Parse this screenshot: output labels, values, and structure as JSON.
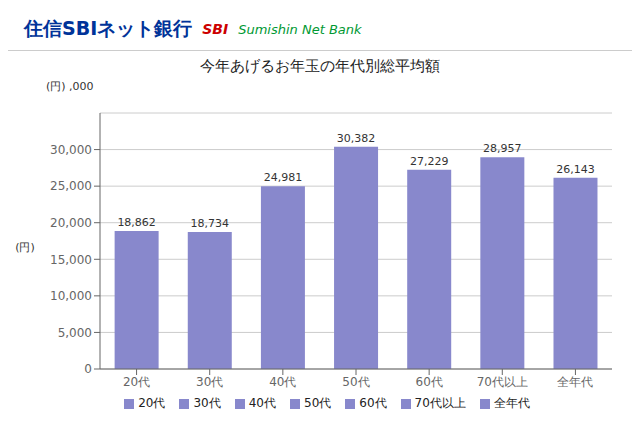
{
  "chart_data": {
    "type": "bar",
    "title": "今年あげるお年玉の年代別総平均額",
    "categories": [
      "20代",
      "30代",
      "40代",
      "50代",
      "60代",
      "70代以上",
      "全年代"
    ],
    "values": [
      18862,
      18734,
      24981,
      30382,
      27229,
      28957,
      26143
    ],
    "value_labels": [
      "18,862",
      "18,734",
      "24,981",
      "30,382",
      "27,229",
      "28,957",
      "26,143"
    ],
    "color": "#8888cc",
    "ylim": [
      0,
      35000
    ],
    "yticks": [
      0,
      {
        "value": 5000,
        "label": "5,000"
      },
      {
        "value": 10000,
        "label": "10,000"
      },
      {
        "value": 15000,
        "label": "15,000"
      },
      {
        "value": 20000,
        "label": "20,000"
      },
      {
        "value": 25000,
        "label": "25,000"
      },
      {
        "value": 30000,
        "label": "30,000"
      }
    ],
    "grid": true,
    "data_labels": true,
    "legend": "bottom",
    "annotations": [
      {
        "text": "住信SBIネット銀行",
        "color": "#003399"
      },
      {
        "text": "SBI",
        "color": "#cc0000"
      },
      {
        "text": "Sumishin Net Bank",
        "color": "#009933"
      },
      {
        "text": "(円)"
      },
      {
        "text": ",000"
      },
      {
        "text": "(円)"
      }
    ]
  }
}
